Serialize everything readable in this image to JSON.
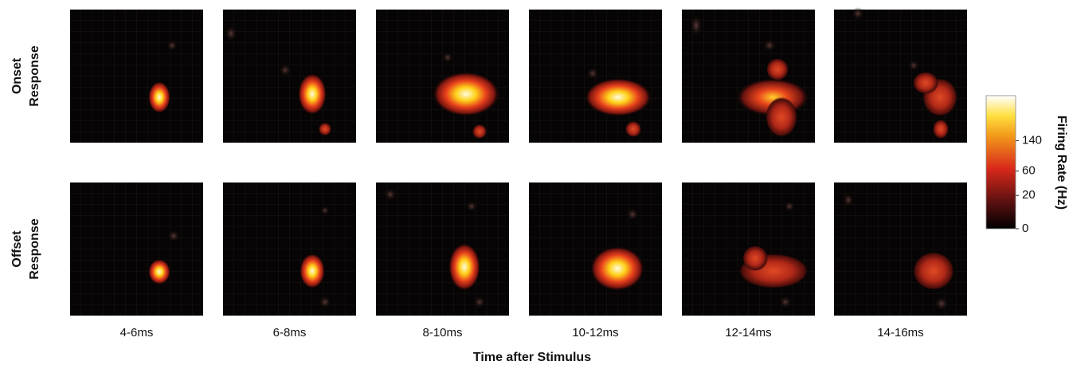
{
  "rows": [
    {
      "label_lines": [
        "Onset",
        "Response"
      ]
    },
    {
      "label_lines": [
        "Offset",
        "Response"
      ]
    }
  ],
  "columns": [
    "4-6ms",
    "6-8ms",
    "8-10ms",
    "10-12ms",
    "12-14ms",
    "14-16ms"
  ],
  "x_axis_title": "Time after Stimulus",
  "colorbar": {
    "title": "Firing Rate (Hz)",
    "ticks": [
      0,
      20,
      60,
      140
    ],
    "range": [
      0,
      320
    ],
    "scale": "sqrt"
  }
}
